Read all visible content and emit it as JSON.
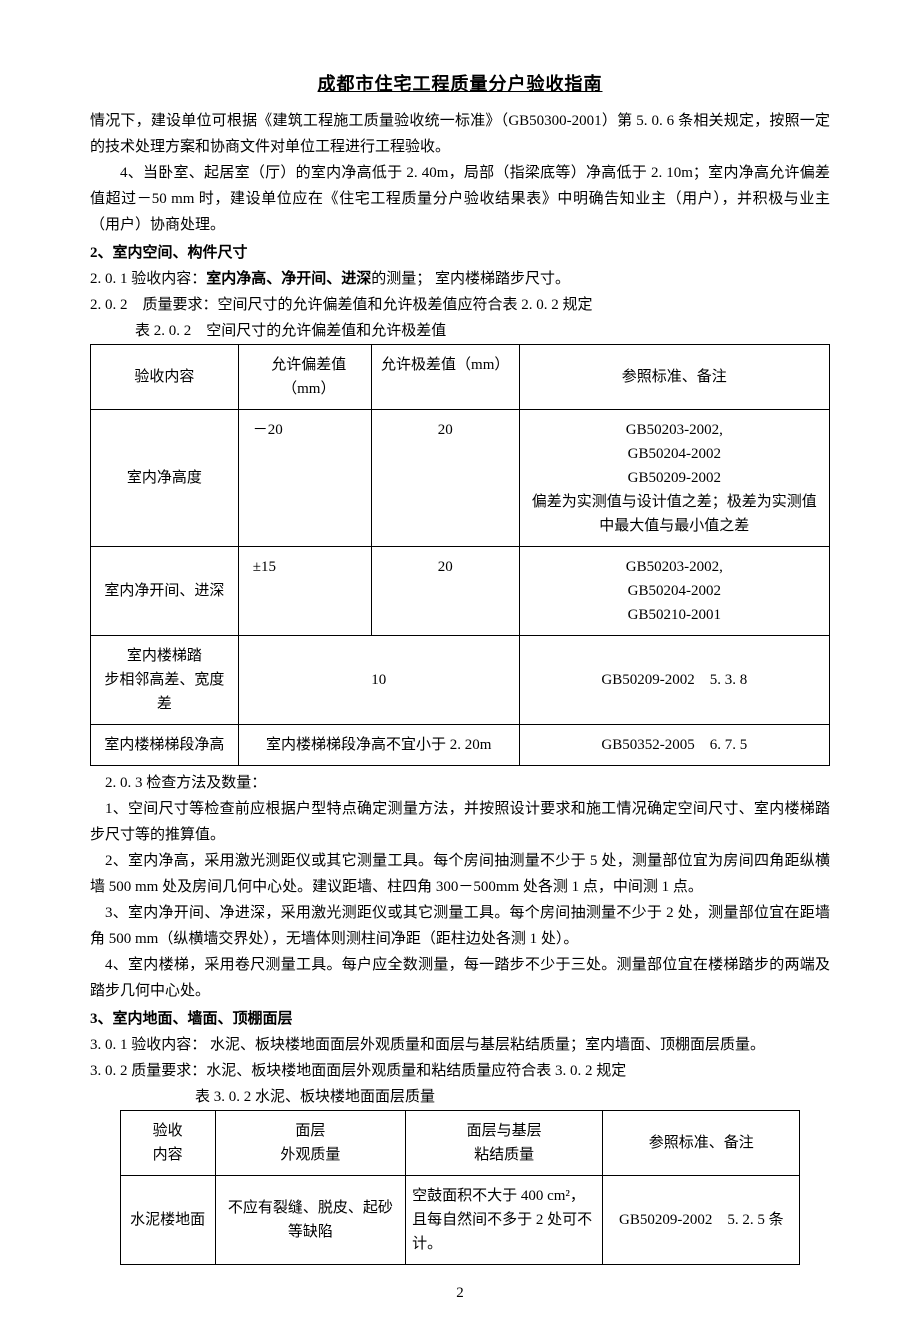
{
  "meta": {
    "page_number": "2"
  },
  "header": {
    "title": "成都市住宅工程质量分户验收指南"
  },
  "intro_paragraphs": {
    "p1": "情况下，建设单位可根据《建筑工程施工质量验收统一标准》（GB50300-2001）第 5. 0. 6 条相关规定，按照一定的技术处理方案和协商文件对单位工程进行工程验收。",
    "p2": "4、当卧室、起居室（厅）的室内净高低于 2. 40m，局部（指梁底等）净高低于 2. 10m；室内净高允许偏差值超过－50 mm 时，建设单位应在《住宅工程质量分户验收结果表》中明确告知业主（用户），并积极与业主（用户）协商处理。"
  },
  "section2": {
    "heading": "2、室内空间、构件尺寸",
    "l201_label": "2. 0. 1",
    "l201_pre": "验收内容：",
    "l201_bold": "室内净高、净开间、进深",
    "l201_post": "的测量； 室内楼梯踏步尺寸。",
    "l202": "2. 0. 2　质量要求：空间尺寸的允许偏差值和允许极差值应符合表 2. 0. 2 规定",
    "table_caption": "表 2. 0. 2　空间尺寸的允许偏差值和允许极差值",
    "table": {
      "head": {
        "c1": "验收内容",
        "c2": "允许偏差值（mm）",
        "c3": "允许极差值（mm）",
        "c4": "参照标准、备注"
      },
      "rows": [
        {
          "c1": "室内净高度",
          "c2": "－20",
          "c3": "20",
          "c4_l1": "GB50203-2002,",
          "c4_l2": "GB50204-2002",
          "c4_l3": "GB50209-2002",
          "c4_l4": "偏差为实测值与设计值之差；极差为实测值中最大值与最小值之差"
        },
        {
          "c1": "室内净开间、进深",
          "c2": "±15",
          "c3": "20",
          "c4_l1": "GB50203-2002,",
          "c4_l2": "GB50204-2002",
          "c4_l3": "GB50210-2001"
        },
        {
          "c1_l1": "室内楼梯踏",
          "c1_l2": "步相邻高差、宽度差",
          "c23": "10",
          "c4": "GB50209-2002　5. 3. 8"
        },
        {
          "c1": "室内楼梯梯段净高",
          "c23": "室内楼梯梯段净高不宜小于 2. 20m",
          "c4": "GB50352-2005　6. 7. 5"
        }
      ]
    },
    "l203_head": "2. 0. 3 检查方法及数量：",
    "l203_p1": "1、空间尺寸等检查前应根据户型特点确定测量方法，并按照设计要求和施工情况确定空间尺寸、室内楼梯踏步尺寸等的推算值。",
    "l203_p2": "2、室内净高，采用激光测距仪或其它测量工具。每个房间抽测量不少于 5 处，测量部位宜为房间四角距纵横墙 500 mm 处及房间几何中心处。建议距墙、柱四角 300－500mm 处各测 1 点，中间测 1 点。",
    "l203_p3": "3、室内净开间、净进深，采用激光测距仪或其它测量工具。每个房间抽测量不少于 2 处，测量部位宜在距墙角 500 mm（纵横墙交界处），无墙体则测柱间净距（距柱边处各测 1 处）。",
    "l203_p4": "4、室内楼梯，采用卷尺测量工具。每户应全数测量，每一踏步不少于三处。测量部位宜在楼梯踏步的两端及踏步几何中心处。"
  },
  "section3": {
    "heading": "3、室内地面、墙面、顶棚面层",
    "l301": "3. 0. 1 验收内容： 水泥、板块楼地面面层外观质量和面层与基层粘结质量；室内墙面、顶棚面层质量。",
    "l302": "3. 0. 2 质量要求：水泥、板块楼地面面层外观质量和粘结质量应符合表 3. 0. 2 规定",
    "table_caption": "表 3. 0. 2 水泥、板块楼地面面层质量",
    "table": {
      "head": {
        "c1_l1": "验收",
        "c1_l2": "内容",
        "c2_l1": "面层",
        "c2_l2": "外观质量",
        "c3_l1": "面层与基层",
        "c3_l2": "粘结质量",
        "c4": "参照标准、备注"
      },
      "rows": [
        {
          "c1": "水泥楼地面",
          "c2": "不应有裂缝、脱皮、起砂等缺陷",
          "c3": "空鼓面积不大于 400 cm²，且每自然间不多于 2 处可不计。",
          "c4": "GB50209-2002　5. 2. 5 条"
        }
      ]
    }
  }
}
